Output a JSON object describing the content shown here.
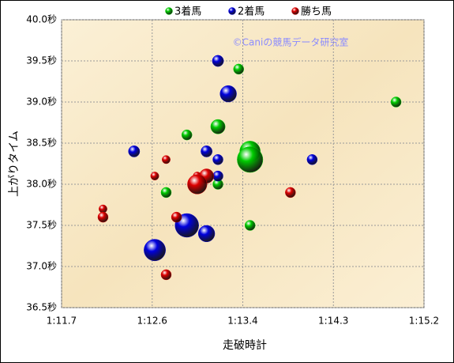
{
  "chart_data": {
    "type": "bubble",
    "xlabel": "走破時計",
    "ylabel": "上がりタイム",
    "annotation": "©Caniの競馬データ研究室",
    "xlim": [
      71.7,
      75.2
    ],
    "xticks": [
      {
        "value": 71.7,
        "label": "1:11.7"
      },
      {
        "value": 72.575,
        "label": "1:12.6"
      },
      {
        "value": 73.45,
        "label": "1:13.4"
      },
      {
        "value": 74.325,
        "label": "1:14.3"
      },
      {
        "value": 75.2,
        "label": "1:15.2"
      }
    ],
    "ylim": [
      36.5,
      40.0
    ],
    "yticks": [
      {
        "value": 36.5,
        "label": "36.5秒"
      },
      {
        "value": 37.0,
        "label": "37.0秒"
      },
      {
        "value": 37.5,
        "label": "37.5秒"
      },
      {
        "value": 38.0,
        "label": "38.0秒"
      },
      {
        "value": 38.5,
        "label": "38.5秒"
      },
      {
        "value": 39.0,
        "label": "39.0秒"
      },
      {
        "value": 39.5,
        "label": "39.5秒"
      },
      {
        "value": 40.0,
        "label": "40.0秒"
      }
    ],
    "grid": true,
    "legend": "top",
    "series": [
      {
        "name": "3着馬",
        "color": "#00cc00",
        "x": [
          73.41,
          74.93,
          72.91,
          73.21,
          73.52,
          73.52,
          73.21,
          72.71,
          73.52
        ],
        "values": [
          39.4,
          39.0,
          38.6,
          38.7,
          38.4,
          38.3,
          38.0,
          37.9,
          37.5
        ],
        "sizes": [
          1,
          1,
          1,
          1.4,
          2,
          2.5,
          1,
          1,
          1
        ]
      },
      {
        "name": "2着馬",
        "color": "#0000dd",
        "x": [
          73.21,
          73.31,
          72.4,
          73.1,
          73.21,
          74.12,
          73.21,
          72.91,
          73.1,
          72.6
        ],
        "values": [
          39.5,
          39.1,
          38.4,
          38.4,
          38.3,
          38.3,
          38.1,
          37.5,
          37.4,
          37.2
        ],
        "sizes": [
          1.1,
          1.6,
          1.1,
          1.1,
          1,
          1,
          1,
          2.3,
          1.6,
          2.1
        ]
      },
      {
        "name": "勝ち馬",
        "color": "#dd0000",
        "x": [
          72.71,
          72.6,
          73.01,
          73.1,
          73.01,
          72.1,
          72.1,
          72.81,
          72.71,
          73.91
        ],
        "values": [
          38.3,
          38.1,
          38.1,
          38.1,
          38.0,
          37.7,
          37.6,
          37.6,
          36.9,
          37.9
        ],
        "sizes": [
          0.8,
          0.8,
          0.8,
          1.4,
          1.9,
          0.8,
          1,
          1,
          1,
          1
        ]
      }
    ]
  }
}
